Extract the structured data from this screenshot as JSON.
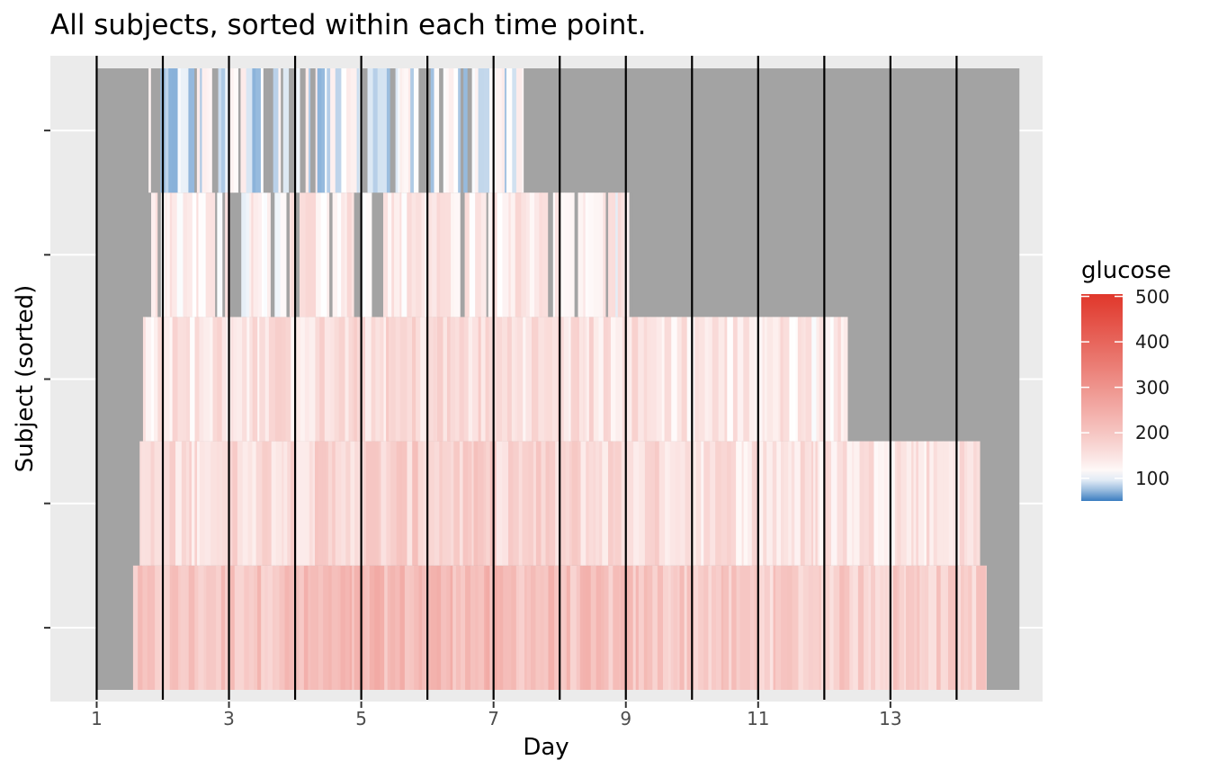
{
  "chart_data": {
    "type": "heatmap",
    "title": "All subjects, sorted within each time point.",
    "xlabel": "Day",
    "ylabel": "Subject (sorted)",
    "x_ticks": [
      "1",
      "3",
      "5",
      "7",
      "9",
      "11",
      "13"
    ],
    "x_tick_values": [
      1,
      3,
      5,
      7,
      9,
      11,
      13
    ],
    "xlim": [
      0.3,
      15.3
    ],
    "day_boundaries": [
      1,
      2,
      3,
      4,
      5,
      6,
      7,
      8,
      9,
      10,
      11,
      12,
      13,
      14
    ],
    "rows": [
      {
        "rank": 1,
        "start_day": 1.55,
        "end_day": 14.45,
        "mean_glucose": 185
      },
      {
        "rank": 2,
        "start_day": 1.65,
        "end_day": 14.35,
        "mean_glucose": 150
      },
      {
        "rank": 3,
        "start_day": 1.7,
        "end_day": 12.35,
        "mean_glucose": 140
      },
      {
        "rank": 4,
        "start_day": 1.75,
        "end_day": 9.1,
        "mean_glucose": 125
      },
      {
        "rank": 5,
        "start_day": 1.75,
        "end_day": 7.45,
        "mean_glucose": 100
      }
    ],
    "missing_color": "#a3a3a3",
    "legend": {
      "title": "glucose",
      "ticks": [
        "100",
        "200",
        "300",
        "400",
        "500"
      ],
      "tick_values": [
        100,
        200,
        300,
        400,
        500
      ],
      "range": [
        50,
        505
      ],
      "colors": {
        "low": "#3a7dc0",
        "mid": "#ffffff",
        "high": "#e0372b"
      },
      "mid_value": 110
    }
  }
}
